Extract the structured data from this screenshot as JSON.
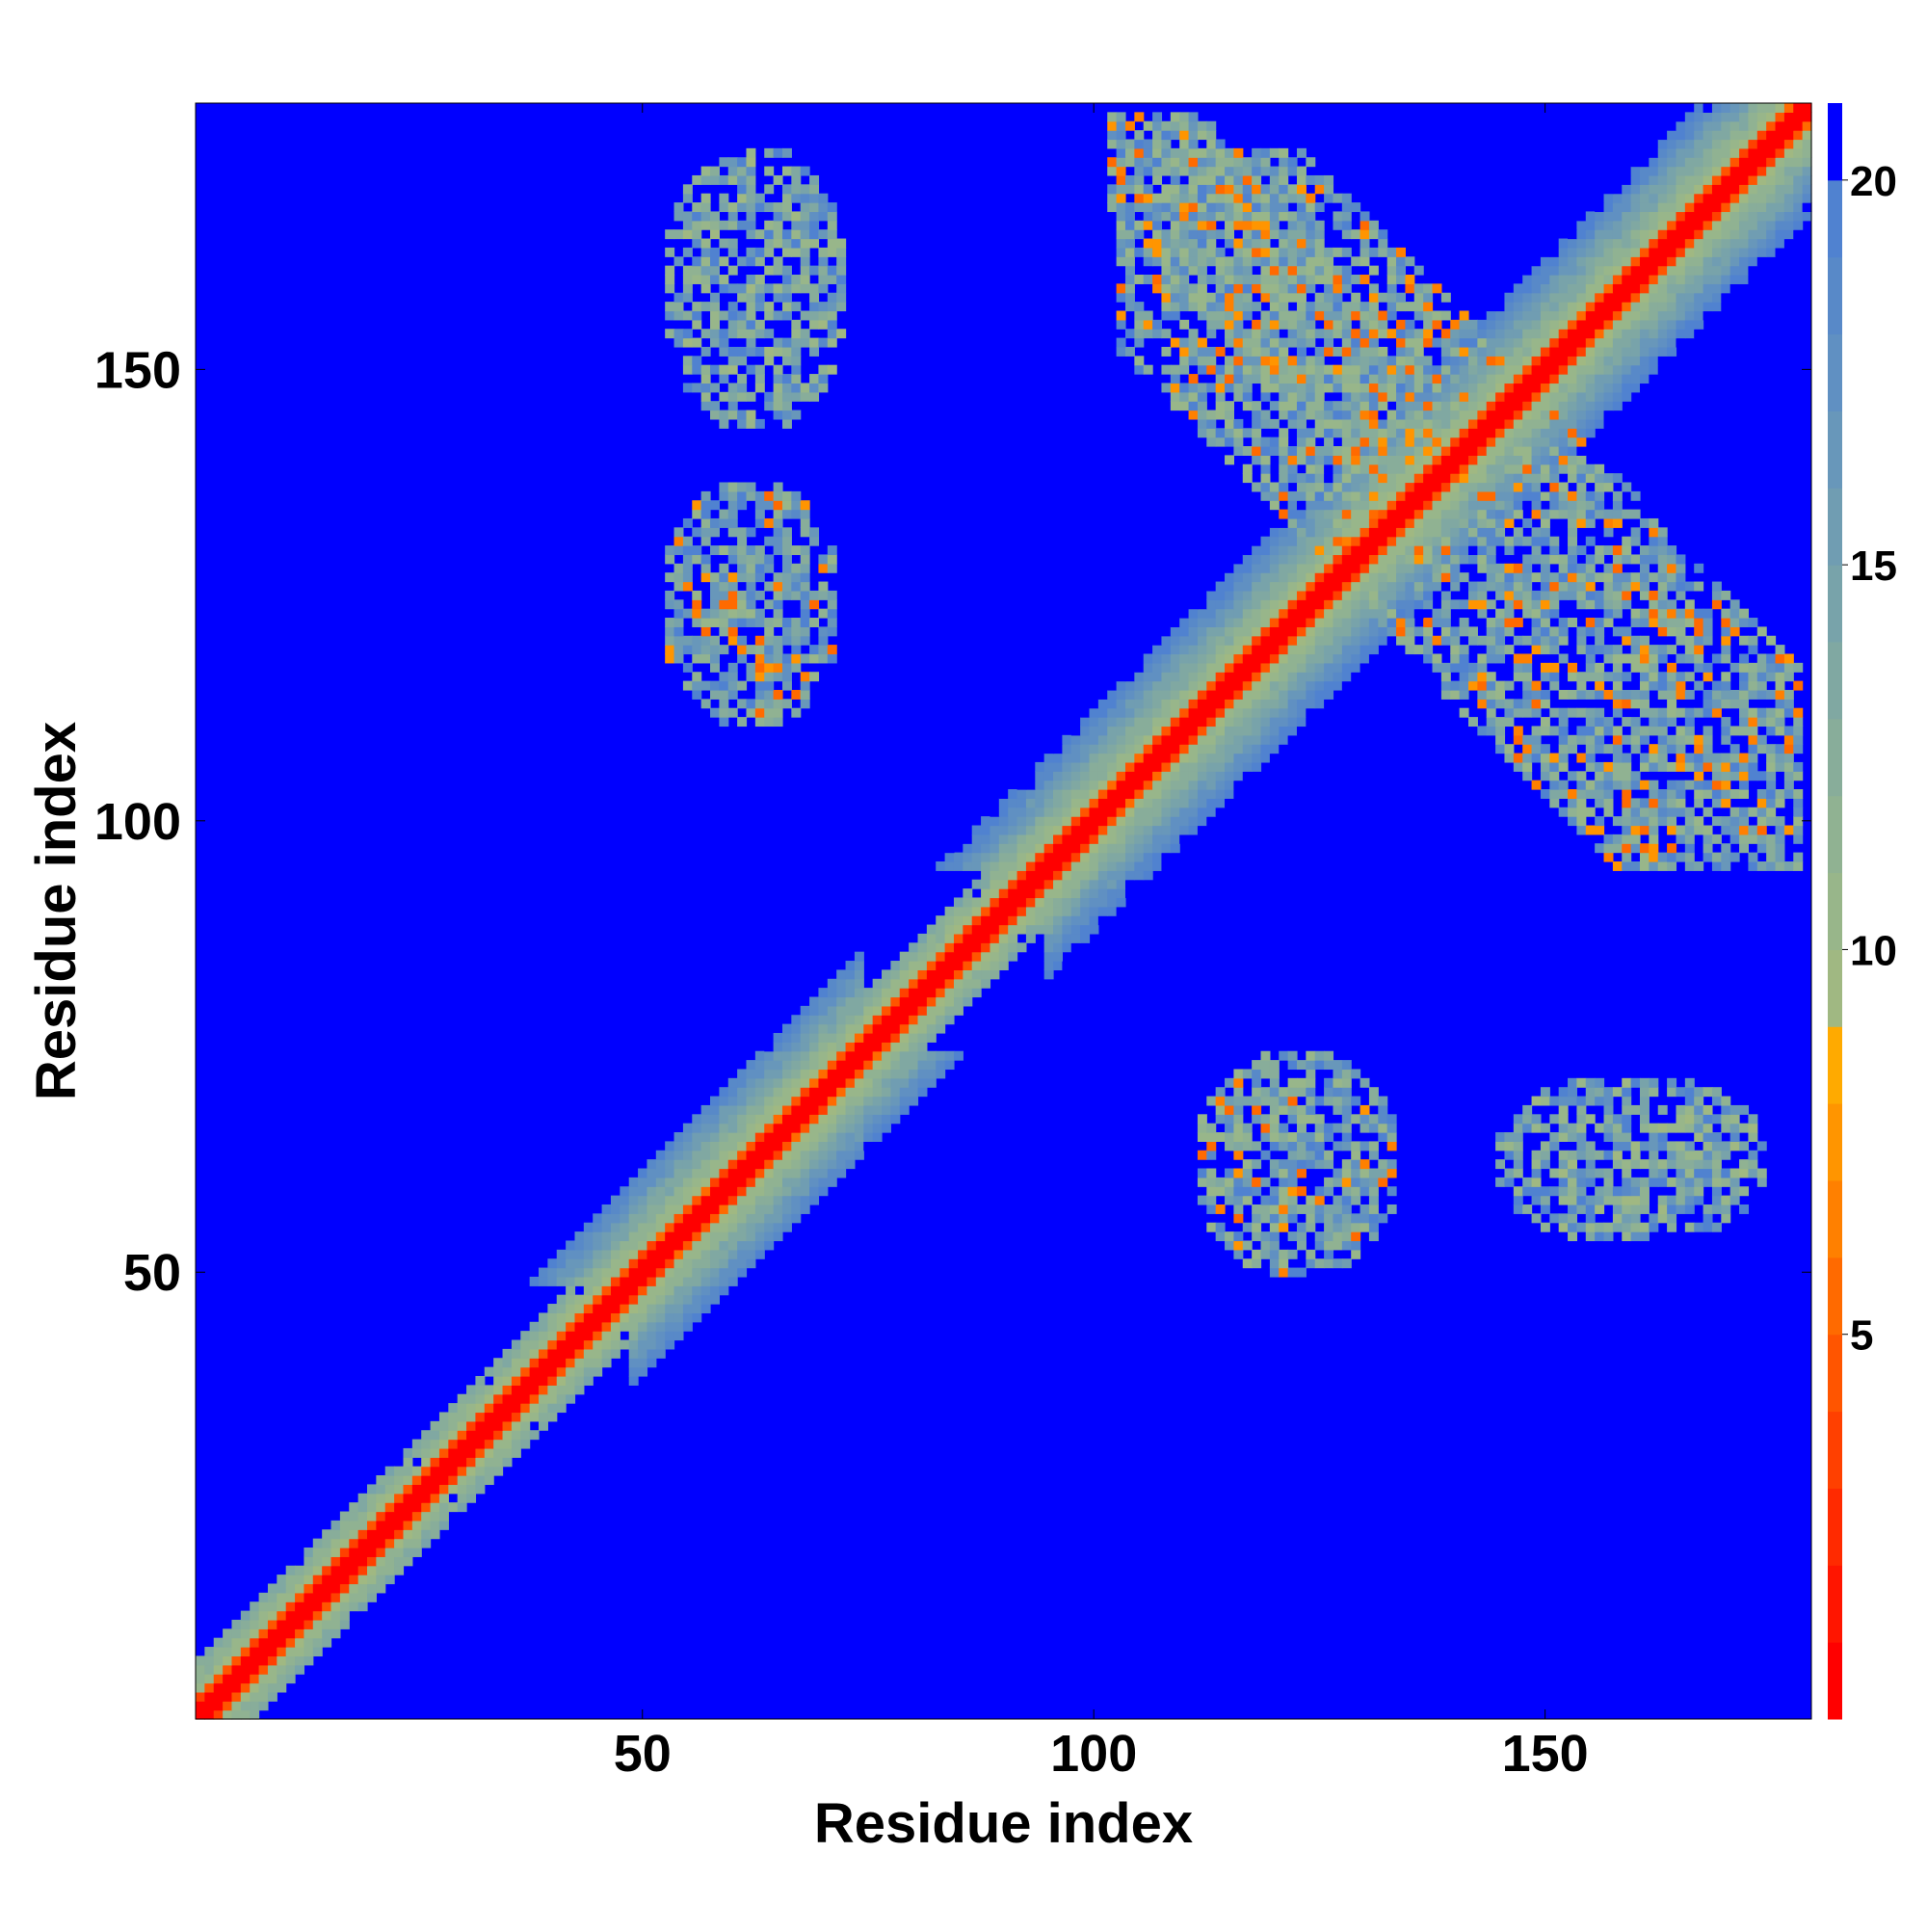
{
  "chart_data": {
    "type": "heatmap",
    "title": "",
    "xlabel": "Residue index",
    "ylabel": "Residue index",
    "xlim": [
      1,
      179
    ],
    "ylim": [
      1,
      179
    ],
    "x_ticks": [
      50,
      100,
      150
    ],
    "y_ticks": [
      50,
      100,
      150
    ],
    "colorbar": {
      "range": [
        0,
        21
      ],
      "ticks": [
        5,
        10,
        15,
        20
      ],
      "levels": [
        {
          "from": 0,
          "to": 1,
          "color": "#ff0000"
        },
        {
          "from": 1,
          "to": 2,
          "color": "#ff1500"
        },
        {
          "from": 2,
          "to": 3,
          "color": "#ff2a00"
        },
        {
          "from": 3,
          "to": 4,
          "color": "#ff4000"
        },
        {
          "from": 4,
          "to": 5,
          "color": "#ff5500"
        },
        {
          "from": 5,
          "to": 6,
          "color": "#ff6a00"
        },
        {
          "from": 6,
          "to": 7,
          "color": "#ff8000"
        },
        {
          "from": 7,
          "to": 8,
          "color": "#ff9500"
        },
        {
          "from": 8,
          "to": 9,
          "color": "#ffaa00"
        },
        {
          "from": 9,
          "to": 10,
          "color": "#a0b882"
        },
        {
          "from": 10,
          "to": 11,
          "color": "#98b68a"
        },
        {
          "from": 11,
          "to": 12,
          "color": "#90b292"
        },
        {
          "from": 12,
          "to": 13,
          "color": "#88ad9a"
        },
        {
          "from": 13,
          "to": 14,
          "color": "#80a8a2"
        },
        {
          "from": 14,
          "to": 15,
          "color": "#78a3aa"
        },
        {
          "from": 15,
          "to": 16,
          "color": "#709db2"
        },
        {
          "from": 16,
          "to": 17,
          "color": "#6897ba"
        },
        {
          "from": 17,
          "to": 18,
          "color": "#6090c2"
        },
        {
          "from": 18,
          "to": 19,
          "color": "#5889c8"
        },
        {
          "from": 19,
          "to": 20,
          "color": "#5082d0"
        },
        {
          "from": 20,
          "to": 21,
          "color": "#0000ff"
        }
      ]
    },
    "background_value": 21,
    "description_of_structure": {
      "diagonal_band": {
        "from": 1,
        "to": 179,
        "core_distance": 0
      },
      "contact_regions": [
        {
          "x": [
            103,
            178
          ],
          "y": [
            95,
            174
          ],
          "orientation": "anti-diagonal",
          "min_value": 5
        },
        {
          "x": [
            102,
            138
          ],
          "y": [
            139,
            178
          ],
          "orientation": "anti-diagonal",
          "min_value": 5
        },
        {
          "x": [
            52,
            72
          ],
          "y": [
            110,
            138
          ],
          "min_value": 5
        },
        {
          "x": [
            52,
            73
          ],
          "y": [
            143,
            175
          ],
          "min_value": 9
        },
        {
          "x": [
            111,
            134
          ],
          "y": [
            49,
            75
          ],
          "min_value": 5
        },
        {
          "x": [
            144,
            175
          ],
          "y": [
            53,
            72
          ],
          "min_value": 9
        }
      ]
    }
  }
}
